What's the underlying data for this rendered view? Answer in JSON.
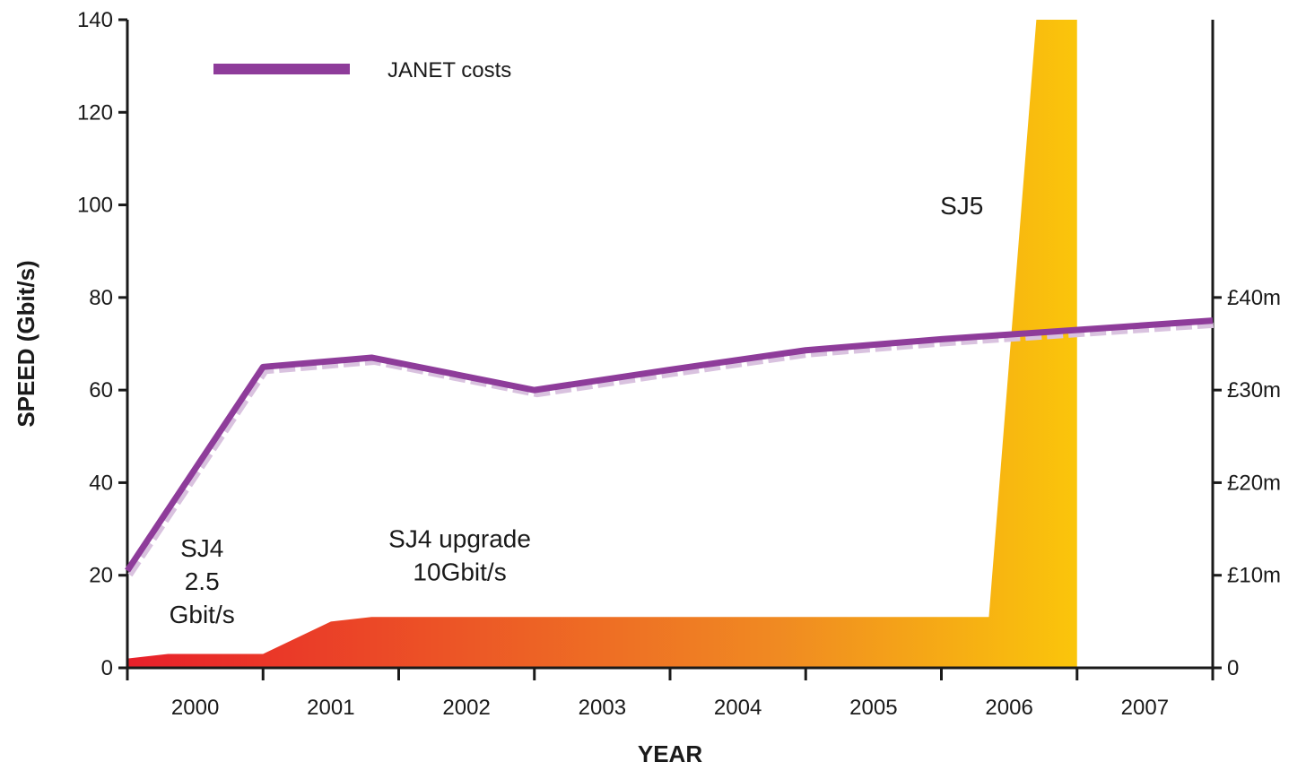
{
  "chart_data": {
    "type": "area",
    "title": "",
    "xlabel": "YEAR",
    "ylabel": "SPEED (Gbit/s)",
    "y2label": "",
    "categories": [
      "2000",
      "2001",
      "2002",
      "2003",
      "2004",
      "2005",
      "2006",
      "2007"
    ],
    "ylim": [
      0,
      140
    ],
    "yticks": [
      0,
      20,
      40,
      60,
      80,
      100,
      120,
      140
    ],
    "y2lim": [
      0,
      70
    ],
    "y2ticks": [
      {
        "value": 0,
        "label": "0"
      },
      {
        "value": 10,
        "label": "£10m"
      },
      {
        "value": 20,
        "label": "£20m"
      },
      {
        "value": 30,
        "label": "£30m"
      },
      {
        "value": 40,
        "label": "£40m"
      }
    ],
    "speed_area": {
      "name": "SPEED",
      "x": [
        2000.0,
        2000.3,
        2001.0,
        2001.5,
        2001.8,
        2006.35,
        2006.7,
        2006.85,
        2007.0
      ],
      "y": [
        2,
        3,
        3,
        10,
        11,
        11,
        140,
        140,
        140
      ]
    },
    "costs_line": {
      "name": "JANET costs",
      "x": [
        2000.0,
        2001.0,
        2001.8,
        2003.0,
        2004.0,
        2005.0,
        2006.0,
        2007.0
      ],
      "y": [
        10.5,
        32.5,
        33.5,
        30.0,
        32.2,
        34.3,
        35.5,
        37.5
      ]
    },
    "legend": {
      "position": "top-left",
      "entries": [
        "JANET costs"
      ]
    },
    "annotations": [
      {
        "lines": [
          "SJ4",
          "2.5",
          "Gbit/s"
        ],
        "x": 2000.55,
        "y": 24
      },
      {
        "lines": [
          "SJ4 upgrade",
          "10Gbit/s"
        ],
        "x": 2002.45,
        "y": 26
      },
      {
        "lines": [
          "SJ5"
        ],
        "x": 2006.15,
        "y": 98
      }
    ],
    "colors": {
      "area_start": "#e8202a",
      "area_mid": "#f08a22",
      "area_end": "#ffe000",
      "cost_line": "#8e3c9a",
      "cost_line_shadow": "#d9c2df",
      "axis": "#1a1a1a"
    },
    "grid": false
  }
}
